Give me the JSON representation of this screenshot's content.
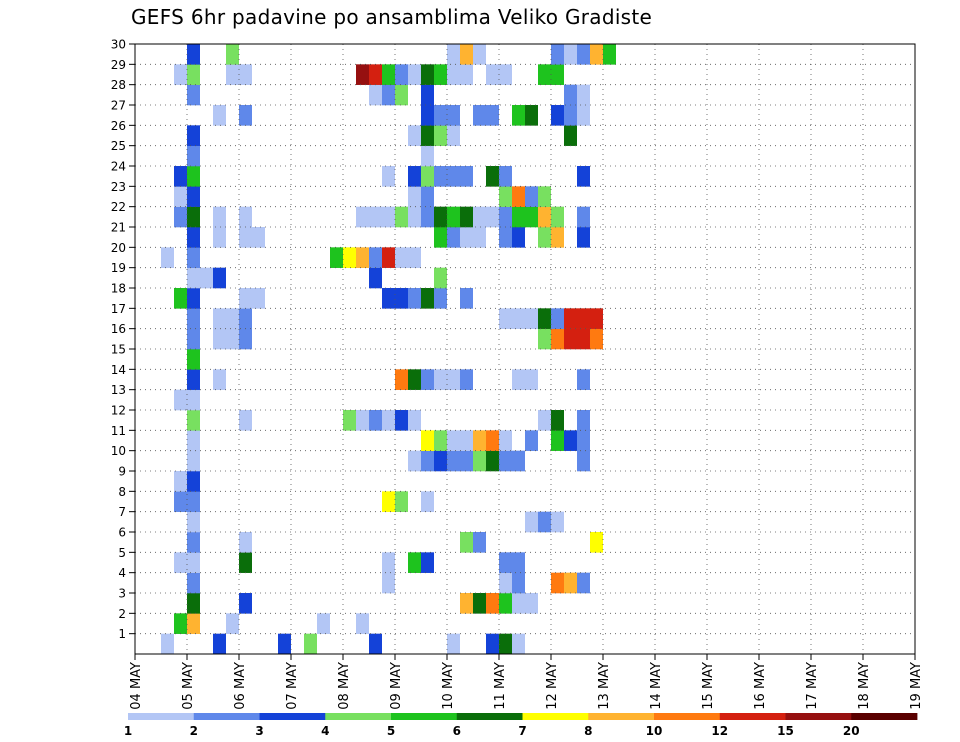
{
  "chart_data": {
    "type": "heatmap",
    "title": "GEFS 6hr padavine po ansamblima Veliko Gradiste",
    "y_members": [
      "1",
      "2",
      "3",
      "4",
      "5",
      "6",
      "7",
      "8",
      "9",
      "10",
      "11",
      "12",
      "13",
      "14",
      "15",
      "16",
      "17",
      "18",
      "19",
      "20",
      "21",
      "22",
      "23",
      "24",
      "25",
      "26",
      "27",
      "28",
      "29",
      "30"
    ],
    "x_dates": [
      "04 MAY",
      "05 MAY",
      "06 MAY",
      "07 MAY",
      "08 MAY",
      "09 MAY",
      "10 MAY",
      "11 MAY",
      "12 MAY",
      "13 MAY",
      "14 MAY",
      "15 MAY",
      "16 MAY",
      "17 MAY",
      "18 MAY",
      "19 MAY"
    ],
    "time_step_hours": 6,
    "grid": true,
    "colorbar": {
      "levels": [
        "1",
        "2",
        "3",
        "4",
        "5",
        "6",
        "7",
        "8",
        "10",
        "12",
        "15",
        "20"
      ],
      "colors": [
        "#b3c6f5",
        "#5f88ea",
        "#1442d8",
        "#78e060",
        "#1ec31e",
        "#0a6e0a",
        "#ffff00",
        "#ffb330",
        "#ff7a10",
        "#d42010",
        "#961010",
        "#5a0000"
      ]
    },
    "precip_mm": [
      {
        "member": 1,
        "t": [
          [
            2,
            1
          ],
          [
            6,
            3
          ],
          [
            11,
            3
          ],
          [
            13,
            4
          ],
          [
            18,
            3
          ],
          [
            24,
            1
          ],
          [
            27,
            3
          ],
          [
            28,
            6
          ],
          [
            29,
            1
          ]
        ]
      },
      {
        "member": 2,
        "t": [
          [
            3,
            5
          ],
          [
            4,
            8
          ],
          [
            7,
            1
          ],
          [
            14,
            1
          ],
          [
            17,
            1
          ]
        ]
      },
      {
        "member": 3,
        "t": [
          [
            4,
            6
          ],
          [
            8,
            3
          ],
          [
            25,
            8
          ],
          [
            26,
            6
          ],
          [
            27,
            11
          ],
          [
            28,
            5
          ],
          [
            29,
            1
          ],
          [
            30,
            1
          ]
        ]
      },
      {
        "member": 4,
        "t": [
          [
            4,
            2
          ],
          [
            19,
            1
          ],
          [
            28,
            1
          ],
          [
            29,
            2
          ],
          [
            32,
            11
          ],
          [
            33,
            9
          ],
          [
            34,
            2
          ]
        ]
      },
      {
        "member": 5,
        "t": [
          [
            3,
            1
          ],
          [
            4,
            1
          ],
          [
            8,
            6
          ],
          [
            19,
            1
          ],
          [
            21,
            5
          ],
          [
            22,
            3
          ],
          [
            28,
            2
          ],
          [
            29,
            2
          ]
        ]
      },
      {
        "member": 6,
        "t": [
          [
            4,
            2
          ],
          [
            8,
            1
          ],
          [
            25,
            4
          ],
          [
            26,
            2
          ],
          [
            35,
            7
          ]
        ]
      },
      {
        "member": 7,
        "t": [
          [
            4,
            1
          ],
          [
            30,
            1
          ],
          [
            31,
            2
          ],
          [
            32,
            1
          ]
        ]
      },
      {
        "member": 8,
        "t": [
          [
            3,
            2
          ],
          [
            4,
            2
          ],
          [
            19,
            7
          ],
          [
            20,
            4
          ],
          [
            22,
            1
          ]
        ]
      },
      {
        "member": 9,
        "t": [
          [
            3,
            1
          ],
          [
            4,
            3
          ]
        ]
      },
      {
        "member": 10,
        "t": [
          [
            4,
            1
          ],
          [
            21,
            1
          ],
          [
            22,
            2
          ],
          [
            23,
            3
          ],
          [
            24,
            2
          ],
          [
            25,
            2
          ],
          [
            26,
            4
          ],
          [
            27,
            6
          ],
          [
            28,
            2
          ],
          [
            29,
            2
          ],
          [
            34,
            2
          ]
        ]
      },
      {
        "member": 11,
        "t": [
          [
            4,
            1
          ],
          [
            22,
            7
          ],
          [
            23,
            4
          ],
          [
            24,
            1
          ],
          [
            25,
            1
          ],
          [
            26,
            9
          ],
          [
            27,
            10
          ],
          [
            28,
            1
          ],
          [
            30,
            2
          ],
          [
            32,
            5
          ],
          [
            33,
            3
          ],
          [
            34,
            2
          ]
        ]
      },
      {
        "member": 12,
        "t": [
          [
            4,
            4
          ],
          [
            8,
            1
          ],
          [
            16,
            4
          ],
          [
            17,
            1
          ],
          [
            18,
            2
          ],
          [
            19,
            1
          ],
          [
            20,
            3
          ],
          [
            21,
            1
          ],
          [
            31,
            1
          ],
          [
            32,
            6
          ],
          [
            34,
            2
          ]
        ]
      },
      {
        "member": 13,
        "t": [
          [
            3,
            1
          ],
          [
            4,
            1
          ]
        ]
      },
      {
        "member": 14,
        "t": [
          [
            4,
            3
          ],
          [
            6,
            1
          ],
          [
            20,
            10
          ],
          [
            21,
            6
          ],
          [
            22,
            2
          ],
          [
            23,
            1
          ],
          [
            24,
            1
          ],
          [
            25,
            2
          ],
          [
            29,
            1
          ],
          [
            30,
            1
          ],
          [
            34,
            2
          ]
        ]
      },
      {
        "member": 15,
        "t": [
          [
            4,
            5
          ]
        ]
      },
      {
        "member": 16,
        "t": [
          [
            4,
            2
          ],
          [
            6,
            1
          ],
          [
            7,
            1
          ],
          [
            8,
            2
          ],
          [
            31,
            4
          ],
          [
            32,
            10
          ],
          [
            33,
            12
          ],
          [
            34,
            12
          ],
          [
            35,
            10
          ]
        ]
      },
      {
        "member": 17,
        "t": [
          [
            4,
            2
          ],
          [
            6,
            1
          ],
          [
            7,
            1
          ],
          [
            8,
            2
          ],
          [
            28,
            1
          ],
          [
            29,
            1
          ],
          [
            30,
            1
          ],
          [
            31,
            6
          ],
          [
            32,
            2
          ],
          [
            33,
            12
          ],
          [
            34,
            12
          ],
          [
            35,
            12
          ]
        ]
      },
      {
        "member": 18,
        "t": [
          [
            3,
            5
          ],
          [
            4,
            3
          ],
          [
            8,
            1
          ],
          [
            9,
            1
          ],
          [
            19,
            3
          ],
          [
            20,
            3
          ],
          [
            21,
            2
          ],
          [
            22,
            6
          ],
          [
            23,
            2
          ],
          [
            25,
            2
          ]
        ]
      },
      {
        "member": 19,
        "t": [
          [
            4,
            1
          ],
          [
            5,
            1
          ],
          [
            6,
            3
          ],
          [
            18,
            3
          ],
          [
            23,
            4
          ]
        ]
      },
      {
        "member": 20,
        "t": [
          [
            2,
            1
          ],
          [
            4,
            2
          ],
          [
            15,
            5
          ],
          [
            16,
            7
          ],
          [
            17,
            8
          ],
          [
            18,
            2
          ],
          [
            19,
            12
          ],
          [
            20,
            1
          ],
          [
            21,
            1
          ]
        ]
      },
      {
        "member": 21,
        "t": [
          [
            4,
            3
          ],
          [
            6,
            1
          ],
          [
            8,
            1
          ],
          [
            9,
            1
          ],
          [
            23,
            5
          ],
          [
            24,
            2
          ],
          [
            25,
            1
          ],
          [
            26,
            1
          ],
          [
            28,
            2
          ],
          [
            29,
            3
          ],
          [
            31,
            4
          ],
          [
            32,
            8
          ],
          [
            34,
            3
          ]
        ]
      },
      {
        "member": 22,
        "t": [
          [
            3,
            2
          ],
          [
            4,
            6
          ],
          [
            6,
            1
          ],
          [
            8,
            1
          ],
          [
            17,
            1
          ],
          [
            18,
            1
          ],
          [
            19,
            1
          ],
          [
            20,
            4
          ],
          [
            21,
            1
          ],
          [
            22,
            2
          ],
          [
            23,
            6
          ],
          [
            24,
            5
          ],
          [
            25,
            6
          ],
          [
            26,
            1
          ],
          [
            27,
            1
          ],
          [
            28,
            2
          ],
          [
            29,
            5
          ],
          [
            30,
            5
          ],
          [
            31,
            8
          ],
          [
            32,
            4
          ],
          [
            34,
            2
          ]
        ]
      },
      {
        "member": 23,
        "t": [
          [
            3,
            1
          ],
          [
            4,
            3
          ],
          [
            21,
            1
          ],
          [
            22,
            2
          ],
          [
            28,
            4
          ],
          [
            29,
            10
          ],
          [
            30,
            2
          ],
          [
            31,
            4
          ]
        ]
      },
      {
        "member": 24,
        "t": [
          [
            3,
            3
          ],
          [
            4,
            5
          ],
          [
            19,
            1
          ],
          [
            21,
            3
          ],
          [
            22,
            4
          ],
          [
            23,
            2
          ],
          [
            24,
            2
          ],
          [
            25,
            2
          ],
          [
            27,
            6
          ],
          [
            28,
            2
          ],
          [
            34,
            3
          ]
        ]
      },
      {
        "member": 25,
        "t": [
          [
            4,
            2
          ],
          [
            22,
            1
          ]
        ]
      },
      {
        "member": 26,
        "t": [
          [
            4,
            3
          ],
          [
            21,
            1
          ],
          [
            22,
            6
          ],
          [
            23,
            4
          ],
          [
            24,
            1
          ],
          [
            33,
            6
          ]
        ]
      },
      {
        "member": 27,
        "t": [
          [
            6,
            1
          ],
          [
            8,
            2
          ],
          [
            22,
            3
          ],
          [
            23,
            2
          ],
          [
            24,
            2
          ],
          [
            26,
            2
          ],
          [
            27,
            2
          ],
          [
            29,
            5
          ],
          [
            30,
            6
          ],
          [
            32,
            3
          ],
          [
            33,
            2
          ],
          [
            34,
            1
          ]
        ]
      },
      {
        "member": 28,
        "t": [
          [
            4,
            2
          ],
          [
            18,
            1
          ],
          [
            19,
            2
          ],
          [
            20,
            4
          ],
          [
            22,
            3
          ],
          [
            33,
            2
          ],
          [
            34,
            1
          ]
        ]
      },
      {
        "member": 29,
        "t": [
          [
            3,
            1
          ],
          [
            4,
            4
          ],
          [
            7,
            1
          ],
          [
            8,
            1
          ],
          [
            17,
            15
          ],
          [
            18,
            12
          ],
          [
            19,
            5
          ],
          [
            20,
            2
          ],
          [
            21,
            1
          ],
          [
            22,
            6
          ],
          [
            23,
            5
          ],
          [
            24,
            1
          ],
          [
            25,
            1
          ],
          [
            27,
            1
          ],
          [
            28,
            1
          ],
          [
            31,
            5
          ],
          [
            32,
            5
          ]
        ]
      },
      {
        "member": 30,
        "t": [
          [
            4,
            3
          ],
          [
            7,
            4
          ],
          [
            24,
            1
          ],
          [
            25,
            8
          ],
          [
            26,
            1
          ],
          [
            32,
            2
          ],
          [
            33,
            1
          ],
          [
            34,
            2
          ],
          [
            35,
            9
          ],
          [
            36,
            5
          ]
        ]
      }
    ]
  }
}
